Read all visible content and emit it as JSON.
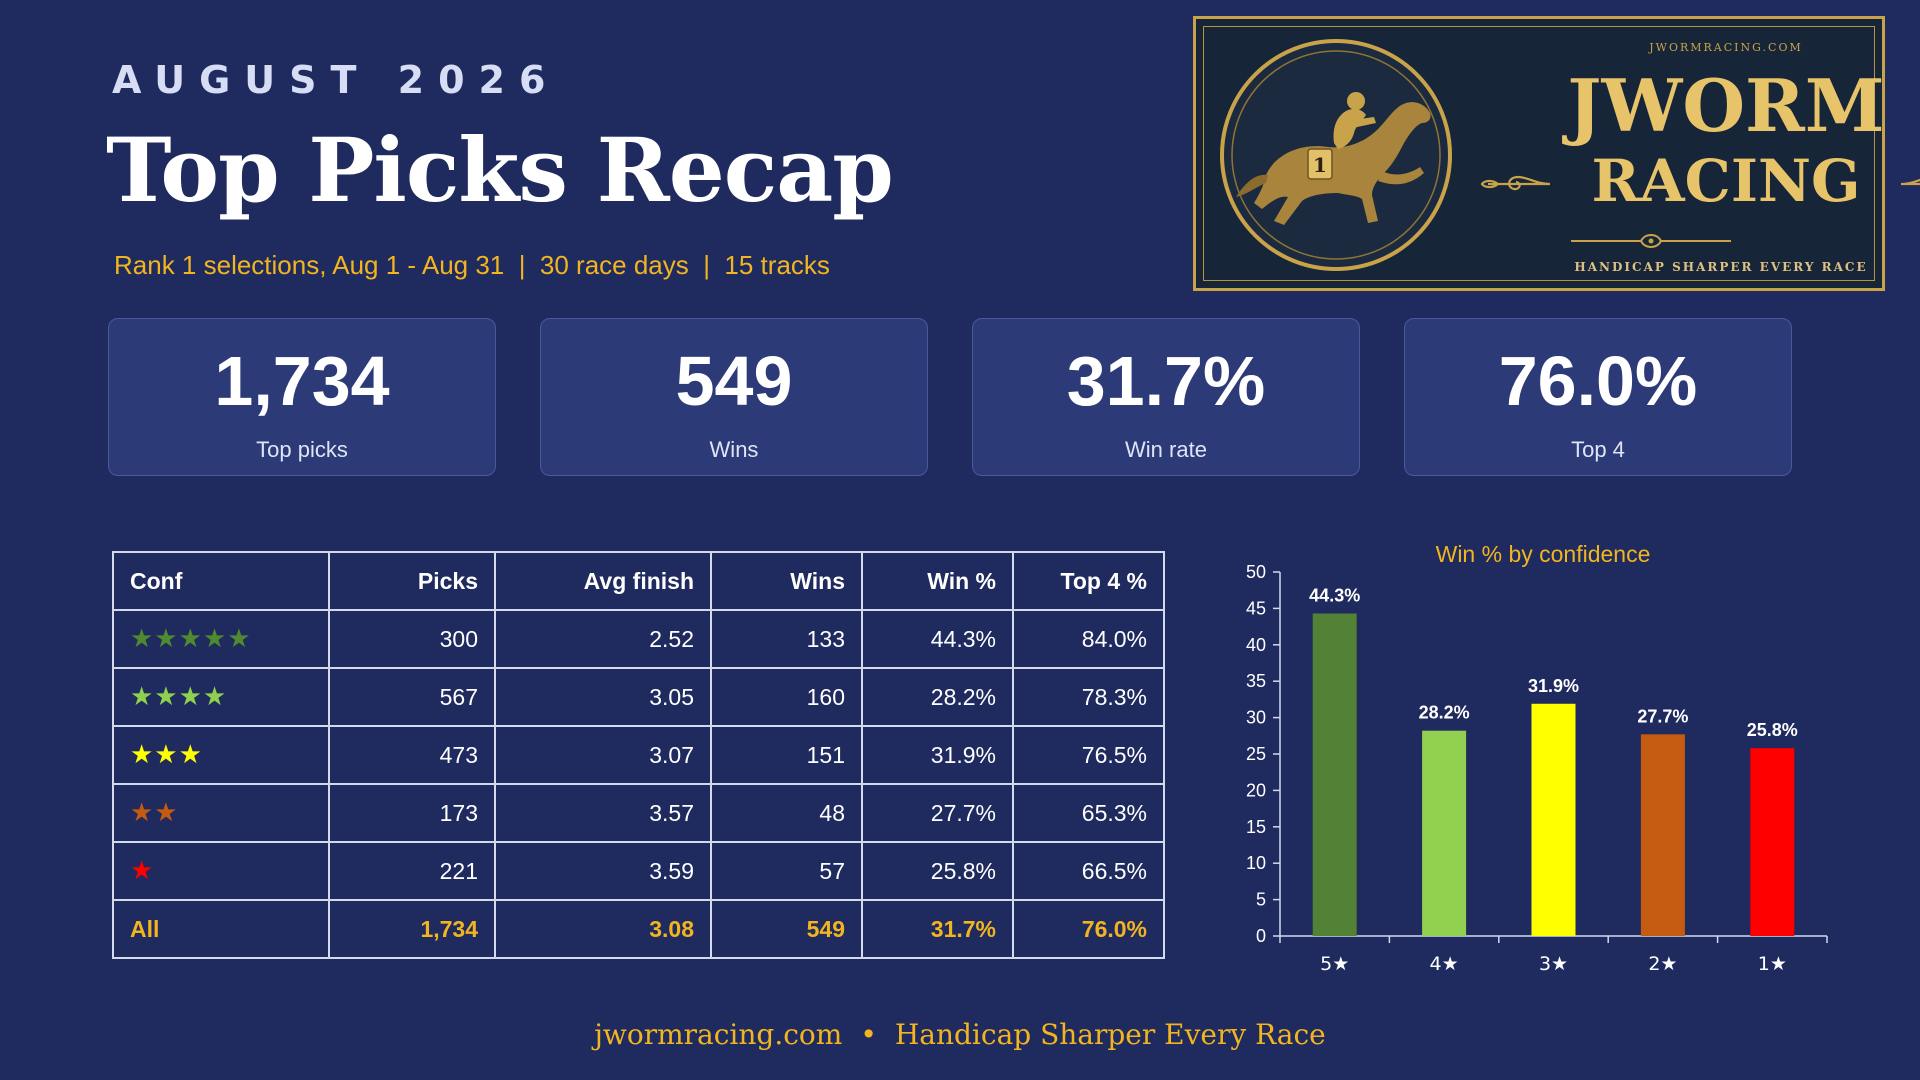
{
  "header": {
    "month": "AUGUST 2026",
    "title": "Top Picks Recap",
    "subtitle": "Rank 1 selections, Aug 1 - Aug 31  |  30 race days  |  15 tracks"
  },
  "logo": {
    "site": "JWORMRACING.COM",
    "name_line1": "JWORM",
    "name_line2": "RACING",
    "tagline": "HANDICAP SHARPER EVERY RACE",
    "saddle_number": "1",
    "emblem": "horse-and-jockey-icon"
  },
  "cards": [
    {
      "value": "1,734",
      "label": "Top picks"
    },
    {
      "value": "549",
      "label": "Wins"
    },
    {
      "value": "31.7%",
      "label": "Win rate"
    },
    {
      "value": "76.0%",
      "label": "Top 4"
    }
  ],
  "table": {
    "headers": [
      "Conf",
      "Picks",
      "Avg finish",
      "Wins",
      "Win %",
      "Top 4 %"
    ],
    "rows": [
      {
        "stars": "★★★★★",
        "star_color": "#4f8a30",
        "picks": "300",
        "avg_finish": "2.52",
        "wins": "133",
        "win_pct": "44.3%",
        "top4_pct": "84.0%"
      },
      {
        "stars": "★★★★",
        "star_color": "#8fd14f",
        "picks": "567",
        "avg_finish": "3.05",
        "wins": "160",
        "win_pct": "28.2%",
        "top4_pct": "78.3%"
      },
      {
        "stars": "★★★",
        "star_color": "#ffff00",
        "picks": "473",
        "avg_finish": "3.07",
        "wins": "151",
        "win_pct": "31.9%",
        "top4_pct": "76.5%"
      },
      {
        "stars": "★★",
        "star_color": "#c55a11",
        "picks": "173",
        "avg_finish": "3.57",
        "wins": "48",
        "win_pct": "27.7%",
        "top4_pct": "65.3%"
      },
      {
        "stars": "★",
        "star_color": "#ff0000",
        "picks": "221",
        "avg_finish": "3.59",
        "wins": "57",
        "win_pct": "25.8%",
        "top4_pct": "66.5%"
      }
    ],
    "total": {
      "label": "All",
      "picks": "1,734",
      "avg_finish": "3.08",
      "wins": "549",
      "win_pct": "31.7%",
      "top4_pct": "76.0%"
    }
  },
  "chart_data": {
    "type": "bar",
    "title": "Win % by confidence",
    "categories": [
      "5★",
      "4★",
      "3★",
      "2★",
      "1★"
    ],
    "values": [
      44.3,
      28.2,
      31.9,
      27.7,
      25.8
    ],
    "data_labels": [
      "44.3%",
      "28.2%",
      "31.9%",
      "27.7%",
      "25.8%"
    ],
    "colors": [
      "#538135",
      "#92d050",
      "#ffff00",
      "#c55a11",
      "#ff0000"
    ],
    "ylim": [
      0,
      50
    ],
    "yticks": [
      0,
      5,
      10,
      15,
      20,
      25,
      30,
      35,
      40,
      45,
      50
    ],
    "xlabel": "",
    "ylabel": "",
    "grid": false,
    "legend": "none"
  },
  "footer": {
    "site": "jwormracing.com",
    "separator": "•",
    "tagline": "Handicap Sharper Every Race"
  },
  "colors": {
    "background": "#1f2a5e",
    "card": "#2c3b78",
    "accent": "#f2b51f",
    "logo_gold": "#e7c36a",
    "logo_bg": "#172539"
  }
}
